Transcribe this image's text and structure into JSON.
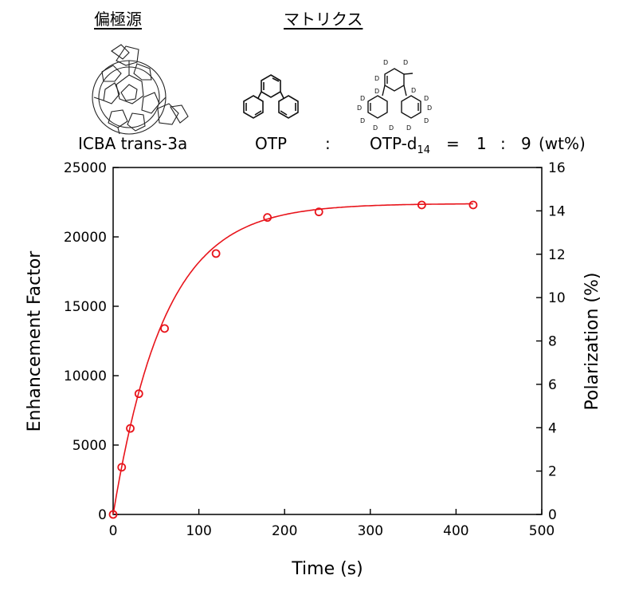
{
  "header": {
    "left_heading": "偏極源",
    "right_heading": "マトリクス"
  },
  "molecules": {
    "left_icon": "fullerene-icba-structure-icon",
    "middle_icon": "ortho-terphenyl-structure-icon",
    "right_icon": "deuterated-terphenyl-structure-icon",
    "deuterium_label": "D"
  },
  "formula": {
    "left": "ICBA trans-3a",
    "otp": "OTP",
    "colon1": ":",
    "otpd_base": "OTP-d",
    "otpd_sub": "14",
    "equals": "=",
    "ratio_a": "1",
    "colon2": ":",
    "ratio_b": "9",
    "unit": "(wt%)"
  },
  "chart_data": {
    "type": "scatter",
    "xlabel": "Time (s)",
    "ylabel": "Enhancement Factor",
    "y2label": "Polarization (%)",
    "xlim": [
      0,
      500
    ],
    "ylim": [
      0,
      25000
    ],
    "y2lim": [
      0,
      16
    ],
    "xticks": [
      0,
      100,
      200,
      300,
      400,
      500
    ],
    "yticks": [
      0,
      5000,
      10000,
      15000,
      20000,
      25000
    ],
    "y2ticks": [
      0,
      2,
      4,
      6,
      8,
      10,
      12,
      14,
      16
    ],
    "grid": false,
    "series": [
      {
        "marker": "open-circle",
        "color": "#e8141b",
        "x": [
          0,
          10,
          20,
          30,
          60,
          120,
          180,
          240,
          360,
          420
        ],
        "y": [
          0,
          3400,
          6200,
          8700,
          13400,
          18800,
          21400,
          21800,
          22300,
          22300
        ]
      }
    ],
    "fit_curve": {
      "color": "#e8141b",
      "model": "y = A * (1 - exp(-x / tau))",
      "A": 22400,
      "tau": 60
    }
  }
}
